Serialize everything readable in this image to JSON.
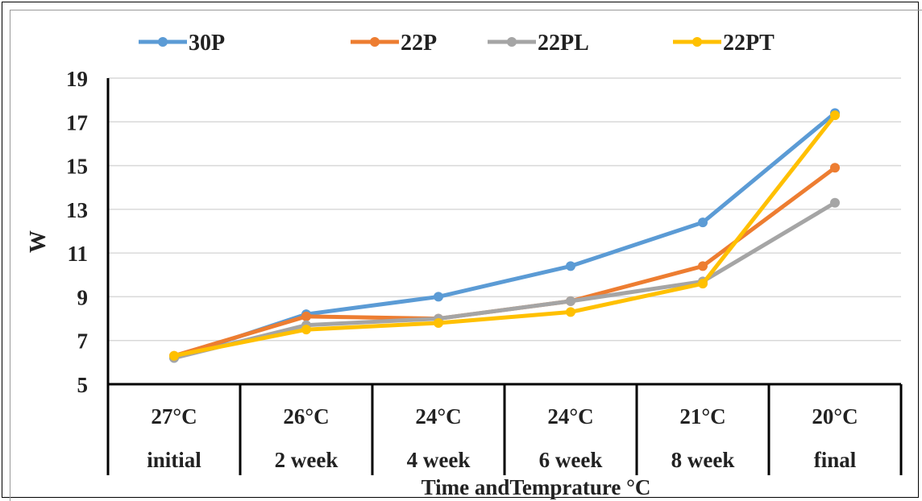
{
  "chart_data": {
    "type": "line",
    "categories": [
      [
        "27°C",
        "initial"
      ],
      [
        "26°C",
        "2 week"
      ],
      [
        "24°C",
        "4 week"
      ],
      [
        "24°C",
        "6 week"
      ],
      [
        "21°C",
        "8 week"
      ],
      [
        "20°C",
        "final"
      ]
    ],
    "series": [
      {
        "name": "30P",
        "color": "#5b9bd5",
        "values": [
          6.2,
          8.2,
          9.0,
          10.4,
          12.4,
          17.4
        ]
      },
      {
        "name": "22P",
        "color": "#ed7d31",
        "values": [
          6.3,
          8.1,
          8.0,
          8.8,
          10.4,
          14.9
        ]
      },
      {
        "name": "22PL",
        "color": "#a5a5a5",
        "values": [
          6.2,
          7.7,
          8.0,
          8.8,
          9.7,
          13.3
        ]
      },
      {
        "name": "22PT",
        "color": "#ffc000",
        "values": [
          6.3,
          7.5,
          7.8,
          8.3,
          9.6,
          17.3
        ]
      }
    ],
    "yticks": [
      5,
      7,
      9,
      11,
      13,
      15,
      17,
      19
    ],
    "ylim": [
      5,
      19
    ],
    "ylabel": "W",
    "xlabel": "Time andTemprature °C",
    "grid": true,
    "legend": "top"
  }
}
